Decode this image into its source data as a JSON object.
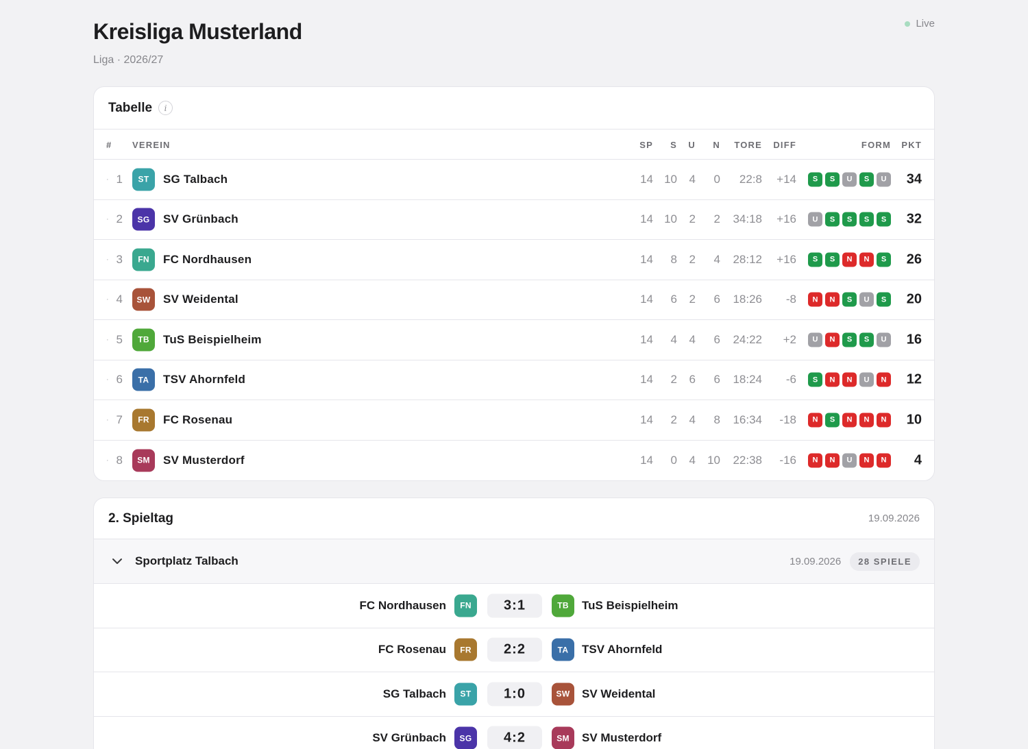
{
  "header": {
    "title": "Kreisliga Musterland",
    "subtitle": "Liga · 2026/27",
    "live_label": "Live"
  },
  "table": {
    "title": "Tabelle",
    "columns": {
      "rank": "#",
      "club": "VEREIN",
      "sp": "SP",
      "s": "S",
      "u": "U",
      "n": "N",
      "tore": "TORE",
      "diff": "DIFF",
      "form": "FORM",
      "pkt": "PKT"
    },
    "rows": [
      {
        "rank": "1",
        "abbr": "ST",
        "color": "#3aa3a8",
        "club": "SG Talbach",
        "sp": "14",
        "s": "10",
        "u": "4",
        "n": "0",
        "tore": "22:8",
        "diff": "+14",
        "form": [
          "S",
          "S",
          "U",
          "S",
          "U"
        ],
        "pkt": "34"
      },
      {
        "rank": "2",
        "abbr": "SG",
        "color": "#4b34a8",
        "club": "SV Grünbach",
        "sp": "14",
        "s": "10",
        "u": "2",
        "n": "2",
        "tore": "34:18",
        "diff": "+16",
        "form": [
          "U",
          "S",
          "S",
          "S",
          "S"
        ],
        "pkt": "32"
      },
      {
        "rank": "3",
        "abbr": "FN",
        "color": "#3aa88f",
        "club": "FC Nordhausen",
        "sp": "14",
        "s": "8",
        "u": "2",
        "n": "4",
        "tore": "28:12",
        "diff": "+16",
        "form": [
          "S",
          "S",
          "N",
          "N",
          "S"
        ],
        "pkt": "26"
      },
      {
        "rank": "4",
        "abbr": "SW",
        "color": "#a8533a",
        "club": "SV Weidental",
        "sp": "14",
        "s": "6",
        "u": "2",
        "n": "6",
        "tore": "18:26",
        "diff": "-8",
        "form": [
          "N",
          "N",
          "S",
          "U",
          "S"
        ],
        "pkt": "20"
      },
      {
        "rank": "5",
        "abbr": "TB",
        "color": "#4fa83a",
        "club": "TuS Beispielheim",
        "sp": "14",
        "s": "4",
        "u": "4",
        "n": "6",
        "tore": "24:22",
        "diff": "+2",
        "form": [
          "U",
          "N",
          "S",
          "S",
          "U"
        ],
        "pkt": "16"
      },
      {
        "rank": "6",
        "abbr": "TA",
        "color": "#3a6fa8",
        "club": "TSV Ahornfeld",
        "sp": "14",
        "s": "2",
        "u": "6",
        "n": "6",
        "tore": "18:24",
        "diff": "-6",
        "form": [
          "S",
          "N",
          "N",
          "U",
          "N"
        ],
        "pkt": "12"
      },
      {
        "rank": "7",
        "abbr": "FR",
        "color": "#a8782f",
        "club": "FC Rosenau",
        "sp": "14",
        "s": "2",
        "u": "4",
        "n": "8",
        "tore": "16:34",
        "diff": "-18",
        "form": [
          "N",
          "S",
          "N",
          "N",
          "N"
        ],
        "pkt": "10"
      },
      {
        "rank": "8",
        "abbr": "SM",
        "color": "#a83a5a",
        "club": "SV Musterdorf",
        "sp": "14",
        "s": "0",
        "u": "4",
        "n": "10",
        "tore": "22:38",
        "diff": "-16",
        "form": [
          "N",
          "N",
          "U",
          "N",
          "N"
        ],
        "pkt": "4"
      }
    ]
  },
  "matchday": {
    "title": "2. Spieltag",
    "date": "19.09.2026",
    "venue": {
      "name": "Sportplatz Talbach",
      "date": "19.09.2026",
      "count": "28 SPIELE"
    },
    "matches": [
      {
        "home": "FC Nordhausen",
        "home_abbr": "FN",
        "home_color": "#3aa88f",
        "score": "3:1",
        "away": "TuS Beispielheim",
        "away_abbr": "TB",
        "away_color": "#4fa83a"
      },
      {
        "home": "FC Rosenau",
        "home_abbr": "FR",
        "home_color": "#a8782f",
        "score": "2:2",
        "away": "TSV Ahornfeld",
        "away_abbr": "TA",
        "away_color": "#3a6fa8"
      },
      {
        "home": "SG Talbach",
        "home_abbr": "ST",
        "home_color": "#3aa3a8",
        "score": "1:0",
        "away": "SV Weidental",
        "away_abbr": "SW",
        "away_color": "#a8533a"
      },
      {
        "home": "SV Grünbach",
        "home_abbr": "SG",
        "home_color": "#4b34a8",
        "score": "4:2",
        "away": "SV Musterdorf",
        "away_abbr": "SM",
        "away_color": "#a83a5a"
      }
    ]
  }
}
